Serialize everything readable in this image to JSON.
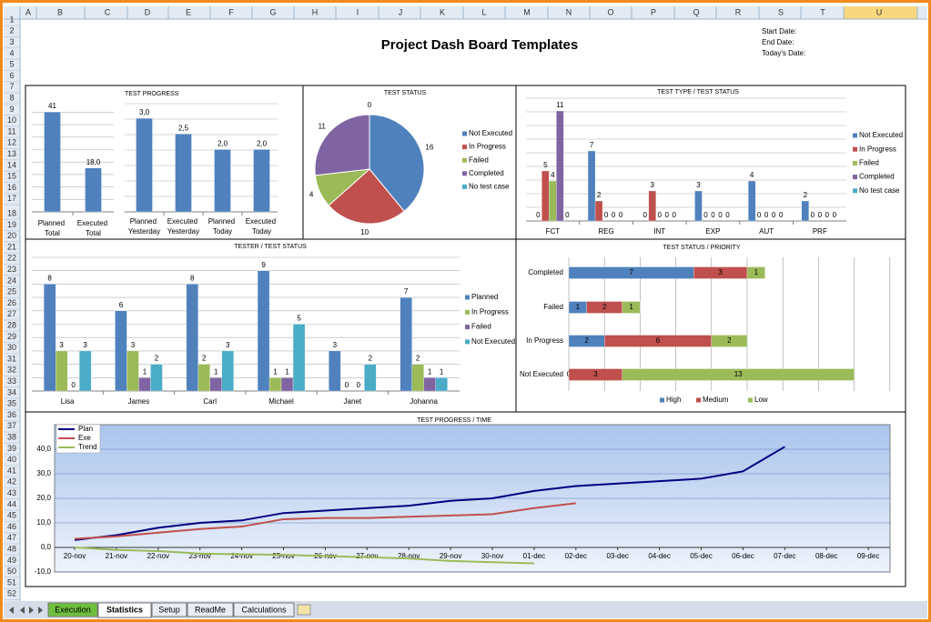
{
  "spreadsheet": {
    "columns": [
      "A",
      "B",
      "C",
      "D",
      "E",
      "F",
      "G",
      "H",
      "I",
      "J",
      "K",
      "L",
      "M",
      "N",
      "O",
      "P",
      "Q",
      "R",
      "S",
      "T",
      "U"
    ],
    "rows": [
      1,
      2,
      3,
      4,
      5,
      6,
      7,
      8,
      9,
      10,
      11,
      12,
      13,
      14,
      15,
      16,
      17,
      18,
      19,
      20,
      21,
      22,
      23,
      24,
      25,
      26,
      27,
      28,
      29,
      30,
      31,
      32,
      33,
      34,
      35,
      36,
      37,
      38,
      39,
      40,
      41,
      42,
      43,
      44,
      45,
      46,
      47,
      48,
      49,
      50,
      51,
      52
    ]
  },
  "header": {
    "title": "Project Dash Board Templates",
    "fields": [
      "Start Date:",
      "End Date:",
      "Today's Date:"
    ]
  },
  "tabs": [
    "Execution",
    "Statistics",
    "Setup",
    "ReadMe",
    "Calculations"
  ],
  "chart_data": [
    {
      "type": "bar",
      "categories": [
        "Planned Total",
        "Executed Total"
      ],
      "values": [
        41,
        18
      ],
      "value_labels": [
        "41",
        "18,0"
      ],
      "color": "#4f81bd",
      "grid": true
    },
    {
      "type": "bar",
      "title": "TEST PROGRESS",
      "categories": [
        "Planned Yesterday",
        "Executed Yesterday",
        "Planned Today",
        "Executed Today"
      ],
      "values": [
        3,
        2.5,
        2,
        2
      ],
      "value_labels": [
        "3,0",
        "2,5",
        "2,0",
        "2,0"
      ],
      "color": "#4f81bd",
      "grid": true
    },
    {
      "type": "pie",
      "title": "TEST STATUS",
      "categories": [
        "Not Executed",
        "In Progress",
        "Failed",
        "Completed",
        "No test case"
      ],
      "values": [
        16,
        10,
        4,
        11,
        0
      ],
      "colors": [
        "#4f81bd",
        "#c0504d",
        "#9bbb59",
        "#8064a2",
        "#4bacc6"
      ],
      "legend": "right"
    },
    {
      "type": "bar",
      "title": "TEST TYPE / TEST STATUS",
      "categories": [
        "FCT",
        "REG",
        "INT",
        "EXP",
        "AUT",
        "PRF"
      ],
      "grid": true,
      "legend": "right",
      "series": [
        {
          "name": "Not Executed",
          "color": "#4f81bd",
          "values": [
            0,
            7,
            0,
            3,
            4,
            2
          ]
        },
        {
          "name": "In Progress",
          "color": "#c0504d",
          "values": [
            5,
            2,
            3,
            0,
            0,
            0
          ]
        },
        {
          "name": "Failed",
          "color": "#9bbb59",
          "values": [
            4,
            0,
            0,
            0,
            0,
            0
          ]
        },
        {
          "name": "Completed",
          "color": "#8064a2",
          "values": [
            11,
            0,
            0,
            0,
            0,
            0
          ]
        },
        {
          "name": "No test case",
          "color": "#4bacc6",
          "values": [
            0,
            0,
            0,
            0,
            0,
            0
          ]
        }
      ]
    },
    {
      "type": "bar",
      "title": "TESTER / TEST STATUS",
      "categories": [
        "Lisa",
        "James",
        "Carl",
        "Michael",
        "Janet",
        "Johanna"
      ],
      "grid": true,
      "legend": "right",
      "series": [
        {
          "name": "Planned",
          "color": "#4f81bd",
          "values": [
            8,
            6,
            8,
            9,
            3,
            7
          ]
        },
        {
          "name": "In Progress",
          "color": "#9bbb59",
          "values": [
            3,
            3,
            2,
            1,
            0,
            2
          ]
        },
        {
          "name": "Failed",
          "color": "#8064a2",
          "values": [
            0,
            1,
            1,
            1,
            0,
            1
          ]
        },
        {
          "name": "Not Executed",
          "color": "#4bacc6",
          "values": [
            3,
            2,
            3,
            5,
            2,
            1
          ]
        }
      ]
    },
    {
      "type": "hbar",
      "title": "TEST STATUS / PRIORITY",
      "categories": [
        "Completed",
        "Failed",
        "In Progress",
        "Not Executed"
      ],
      "stacked": true,
      "grid": true,
      "legend": "bottom",
      "series": [
        {
          "name": "High",
          "color": "#4f81bd",
          "values": [
            7,
            1,
            2,
            0
          ]
        },
        {
          "name": "Medium",
          "color": "#c0504d",
          "values": [
            3,
            2,
            6,
            3
          ]
        },
        {
          "name": "Low",
          "color": "#9bbb59",
          "values": [
            1,
            1,
            2,
            13
          ]
        }
      ]
    },
    {
      "type": "line",
      "title": "TEST PROGRESS / TIME",
      "legend": "top-left",
      "grid": true,
      "categories": [
        "20-nov",
        "21-nov",
        "22-nov",
        "23-nov",
        "24-nov",
        "25-nov",
        "26-nov",
        "27-nov",
        "28-nov",
        "29-nov",
        "30-nov",
        "01-dec",
        "02-dec",
        "03-dec",
        "04-dec",
        "05-dec",
        "06-dec",
        "07-dec",
        "08-dec",
        "09-dec"
      ],
      "ylim": [
        -10,
        50
      ],
      "yticks": [
        {
          "value": -10,
          "label": "-10,0"
        },
        {
          "value": 0,
          "label": "0,0"
        },
        {
          "value": 10,
          "label": "10,0"
        },
        {
          "value": 20,
          "label": "20,0"
        },
        {
          "value": 30,
          "label": "30,0"
        },
        {
          "value": 40,
          "label": "40,0"
        }
      ],
      "series": [
        {
          "name": "Plan",
          "color": "#000080",
          "values": [
            3,
            5,
            8,
            10,
            11,
            14,
            15,
            16,
            17,
            19,
            20,
            23,
            25,
            26,
            27,
            28,
            31,
            41,
            null,
            null
          ]
        },
        {
          "name": "Exe",
          "color": "#c0504d",
          "values": [
            3.5,
            4.5,
            6,
            7.5,
            8.5,
            11.5,
            12,
            12,
            12.5,
            13,
            13.5,
            16,
            18,
            null,
            null,
            null,
            null,
            null,
            null,
            null
          ]
        },
        {
          "name": "Trend",
          "color": "#9bbb59",
          "values": [
            0,
            -1,
            -1.5,
            -2.5,
            -2.8,
            -3,
            -3.5,
            -4,
            -4.5,
            -5.5,
            -6,
            -6.5,
            null,
            null,
            null,
            null,
            null,
            null,
            null,
            null
          ]
        }
      ]
    }
  ]
}
